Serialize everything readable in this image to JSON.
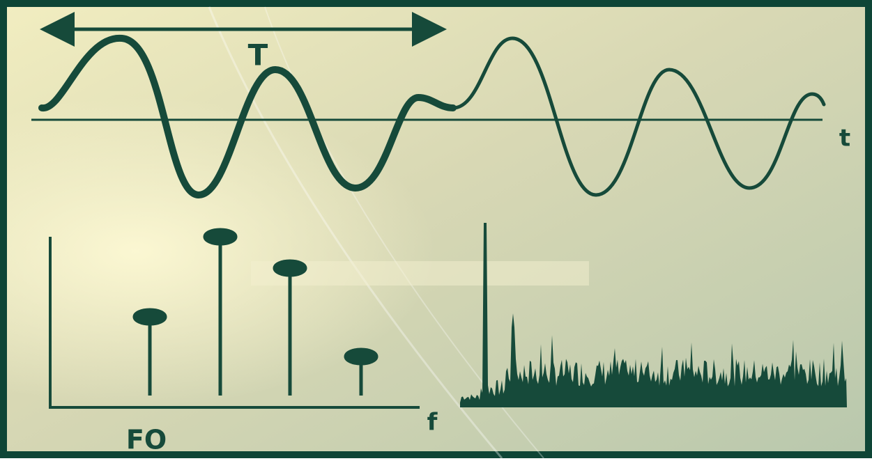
{
  "labels": {
    "period": "T",
    "time_axis": "t",
    "frequency_axis": "f",
    "fundamental": "FO"
  }
}
